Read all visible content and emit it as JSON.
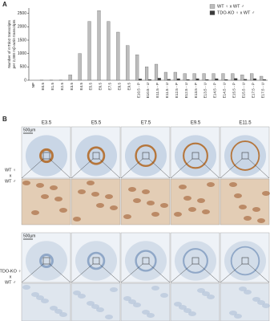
{
  "chart_data": {
    "type": "bar",
    "panel_label": "A",
    "y_label": [
      "Number of mTdo2 transcripts",
      "per 2,000 mβ-actin transcripts"
    ],
    "categories": [
      "NP",
      "E0.5",
      "E1.5",
      "E2.5",
      "E3.5",
      "E4.5",
      "E5.5",
      "E6.5",
      "E7.5",
      "E8.5",
      "E9.5",
      "E10.5 - P",
      "E10.5 - U",
      "E11.5 - P",
      "E11.5 - U",
      "E12.5 - P",
      "E12.5 - U",
      "E13.5 - P",
      "E13.5 - U",
      "E14.5 - P",
      "E14.5 - U",
      "E15.5 - P",
      "E15.5 - U",
      "E17.5 - P",
      "E17.5 - U"
    ],
    "series": [
      {
        "name": "WT ♀ x WT ♂",
        "color": "#bdbdbd",
        "values": [
          0,
          5,
          5,
          5,
          200,
          1000,
          2200,
          2600,
          2200,
          1800,
          1300,
          950,
          500,
          600,
          300,
          300,
          250,
          250,
          250,
          250,
          250,
          250,
          200,
          250,
          150
        ]
      },
      {
        "name": "TDO-KO ♀ x WT ♂",
        "color": "#3a3a3a",
        "values": [
          0,
          0,
          0,
          0,
          0,
          0,
          0,
          0,
          0,
          0,
          0,
          50,
          30,
          80,
          40,
          60,
          30,
          60,
          30,
          60,
          30,
          70,
          40,
          60,
          30
        ]
      }
    ],
    "ylim": [
      0,
      2700
    ],
    "yticks": [
      0,
      500,
      1000,
      1500,
      2000,
      2500
    ],
    "legend": "top-right"
  },
  "panel_b": {
    "label": "B",
    "columns": [
      "E3.5",
      "E5.5",
      "E7.5",
      "E9.5",
      "E11.5"
    ],
    "scale_bar": "500µm",
    "rows": [
      {
        "female": "WT ♀",
        "x": "x",
        "male": "WT ♂"
      },
      {
        "female": "TDO-KO ♀",
        "x": "x",
        "male": "WT ♂"
      }
    ]
  }
}
